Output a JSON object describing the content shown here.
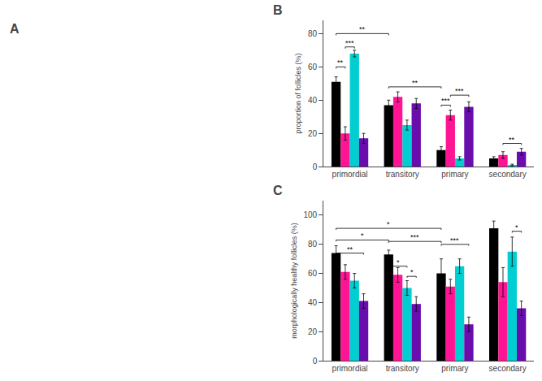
{
  "annotations": [
    {
      "text": "A"
    }
  ],
  "chart_data": [
    {
      "type": "bar",
      "title": "B",
      "categories": [
        "primordial",
        "transitory",
        "primary",
        "secondary"
      ],
      "series": [
        {
          "color": "#000000",
          "values": [
            51,
            37,
            10,
            5
          ],
          "errors": [
            3,
            3,
            2,
            1
          ]
        },
        {
          "color": "#FF1493",
          "values": [
            20,
            42,
            31,
            7
          ],
          "errors": [
            4,
            3,
            3,
            2
          ]
        },
        {
          "color": "#00CED1",
          "values": [
            68,
            25,
            5,
            1
          ],
          "errors": [
            2,
            3,
            1,
            0.5
          ]
        },
        {
          "color": "#6A0DAD",
          "values": [
            17,
            38,
            36,
            9
          ],
          "errors": [
            3,
            3,
            3,
            2
          ]
        }
      ],
      "ylabel": "proportion of follicles (%)",
      "ylim": [
        0,
        88
      ],
      "yticks": [
        0,
        20,
        40,
        60,
        80
      ],
      "grid": false,
      "annotations": [
        {
          "text": "**",
          "start": [
            0,
            0
          ],
          "end": [
            1,
            0
          ],
          "y": 80
        },
        {
          "text": "**",
          "start": [
            0,
            0
          ],
          "end": [
            0,
            1
          ],
          "y": 60
        },
        {
          "text": "***",
          "start": [
            0,
            1
          ],
          "end": [
            0,
            2
          ],
          "y": 72
        },
        {
          "text": "**",
          "start": [
            1,
            0
          ],
          "end": [
            2,
            0
          ],
          "y": 48
        },
        {
          "text": "***",
          "start": [
            2,
            0
          ],
          "end": [
            2,
            1
          ],
          "y": 37
        },
        {
          "text": "***",
          "start": [
            2,
            1
          ],
          "end": [
            2,
            3
          ],
          "y": 43
        },
        {
          "text": "**",
          "start": [
            3,
            1
          ],
          "end": [
            3,
            3
          ],
          "y": 14
        }
      ]
    },
    {
      "type": "bar",
      "title": "C",
      "categories": [
        "primordial",
        "transitory",
        "primary",
        "secondary"
      ],
      "series": [
        {
          "color": "#000000",
          "values": [
            74,
            73,
            60,
            91
          ],
          "errors": [
            5,
            3,
            10,
            5
          ]
        },
        {
          "color": "#FF1493",
          "values": [
            61,
            59,
            51,
            54
          ],
          "errors": [
            5,
            5,
            5,
            10
          ]
        },
        {
          "color": "#00CED1",
          "values": [
            55,
            50,
            65,
            75
          ],
          "errors": [
            5,
            5,
            5,
            10
          ]
        },
        {
          "color": "#6A0DAD",
          "values": [
            41,
            39,
            25,
            36
          ],
          "errors": [
            5,
            5,
            5,
            5
          ]
        }
      ],
      "ylabel": "morphologically healthy follicles (%)",
      "ylim": [
        0,
        110
      ],
      "yticks": [
        0,
        20,
        40,
        60,
        80,
        100
      ],
      "grid": false,
      "annotations": [
        {
          "text": "*",
          "start": [
            0,
            0
          ],
          "end": [
            1,
            0
          ],
          "y": 83
        },
        {
          "text": "*",
          "start": [
            0,
            0
          ],
          "end": [
            2,
            0
          ],
          "y": 91
        },
        {
          "text": "**",
          "start": [
            0,
            0
          ],
          "end": [
            0,
            3
          ],
          "y": 74
        },
        {
          "text": "***",
          "start": [
            1,
            0
          ],
          "end": [
            2,
            0
          ],
          "y": 82
        },
        {
          "text": "*",
          "start": [
            1,
            0
          ],
          "end": [
            1,
            2
          ],
          "y": 65
        },
        {
          "text": "*",
          "start": [
            1,
            2
          ],
          "end": [
            1,
            3
          ],
          "y": 58
        },
        {
          "text": "***",
          "start": [
            2,
            0
          ],
          "end": [
            2,
            3
          ],
          "y": 80
        },
        {
          "text": "*",
          "start": [
            3,
            2
          ],
          "end": [
            3,
            3
          ],
          "y": 89
        }
      ]
    }
  ]
}
